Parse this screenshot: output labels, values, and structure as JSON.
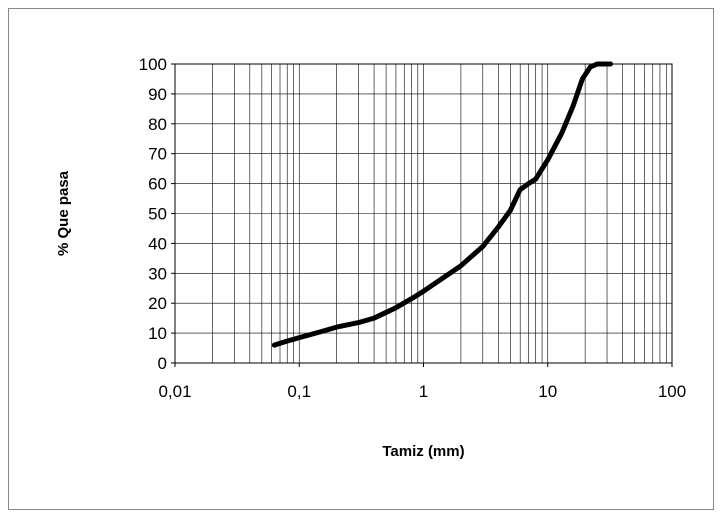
{
  "chart_data": {
    "type": "line",
    "title": "",
    "xlabel": "Tamiz (mm)",
    "ylabel": "% Que pasa",
    "x_scale": "log",
    "xlim": [
      0.01,
      100
    ],
    "ylim": [
      0,
      100
    ],
    "x_ticks": [
      "0,01",
      "0,1",
      "1",
      "10",
      "100"
    ],
    "y_ticks": [
      "0",
      "10",
      "20",
      "30",
      "40",
      "50",
      "60",
      "70",
      "80",
      "90",
      "100"
    ],
    "grid": true,
    "legend": "none",
    "line_color": "#000000",
    "series": [
      {
        "x": [
          0.063,
          0.075,
          0.1,
          0.15,
          0.2,
          0.3,
          0.4,
          0.6,
          0.8,
          1.0,
          1.5,
          2.0,
          3.0,
          4.0,
          5.0,
          6.0,
          7.0,
          8.0,
          10.0,
          13.0,
          16.0,
          19.0,
          22.0,
          25.0,
          32.0
        ],
        "y": [
          6,
          7,
          8.5,
          10.5,
          12,
          13.5,
          15,
          18.5,
          21.5,
          24,
          29,
          32.5,
          39,
          45.5,
          51,
          58,
          60,
          61.5,
          68,
          77,
          86,
          95,
          99,
          100,
          100
        ]
      }
    ]
  }
}
